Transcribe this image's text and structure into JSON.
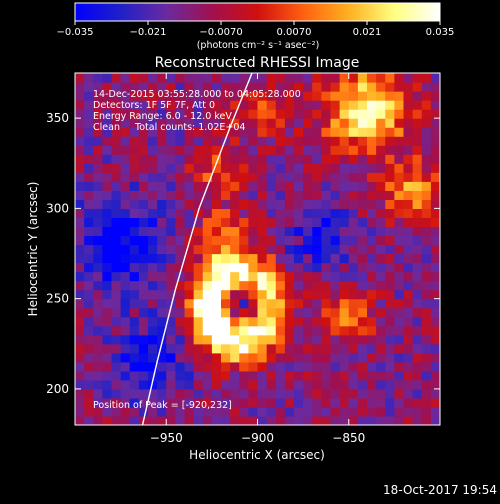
{
  "colorbar": {
    "min": -0.035,
    "max": 0.035,
    "tick_labels": [
      "-0.035",
      "-0.021",
      "-0.0070",
      "0.0070",
      "0.021",
      "0.035"
    ],
    "unit_label": "(photons cm⁻² s⁻¹ asec⁻²)",
    "colors": [
      "#0000ff",
      "#2020c8",
      "#6a2aa0",
      "#a01050",
      "#d01010",
      "#ff6010",
      "#ffb020",
      "#ffff80",
      "#ffffff"
    ]
  },
  "chart_data": {
    "type": "heatmap",
    "title": "Reconstructed RHESSI Image",
    "xlabel": "Heliocentric X (arcsec)",
    "ylabel": "Heliocentric Y (arcsec)",
    "xlim": [
      -1000,
      -800
    ],
    "ylim": [
      180,
      375
    ],
    "x_ticks": [
      -950,
      -900,
      -850
    ],
    "y_ticks": [
      200,
      250,
      300,
      350
    ],
    "x_tick_labels": [
      "−950",
      "−900",
      "−850"
    ],
    "y_tick_labels": [
      "200",
      "250",
      "300",
      "350"
    ],
    "annotations": [
      "14-Dec-2015 03:55:28.000 to 04:05:28.000",
      "Detectors: 1F 5F 7F, Att 0",
      "Energy Range: 6.0 - 12.0 keV",
      "Clean     Total counts: 1.02E+04"
    ],
    "peak_label": "Position of Peak = [-920,232]",
    "peak": [
      -920,
      232
    ],
    "limb_curve": [
      [
        -963,
        180
      ],
      [
        -955,
        215
      ],
      [
        -945,
        255
      ],
      [
        -932,
        300
      ],
      [
        -915,
        345
      ],
      [
        -903,
        375
      ]
    ],
    "grid": false
  },
  "footer": {
    "timestamp": "18-Oct-2017 19:54"
  }
}
